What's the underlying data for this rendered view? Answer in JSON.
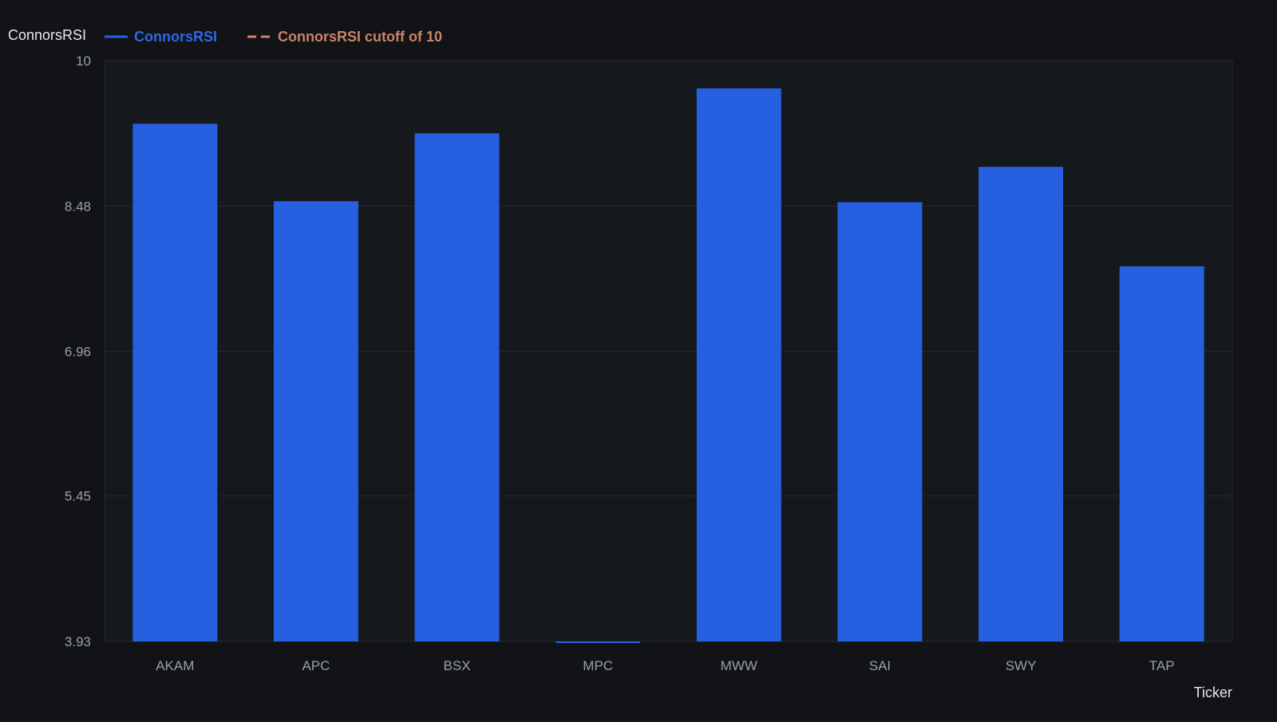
{
  "chart_data": {
    "type": "bar",
    "ylabel": "ConnorsRSI",
    "xlabel": "Ticker",
    "categories": [
      "AKAM",
      "APC",
      "BSX",
      "MPC",
      "MWW",
      "SAI",
      "SWY",
      "TAP"
    ],
    "series": [
      {
        "name": "ConnorsRSI",
        "color": "#2660e0",
        "values": [
          9.34,
          8.53,
          9.24,
          3.92,
          9.71,
          8.52,
          8.89,
          7.85
        ]
      }
    ],
    "reference_lines": [
      {
        "name": "ConnorsRSI cutoff of 10",
        "value": 10,
        "color": "#c98468",
        "style": "dashed"
      }
    ],
    "y_ticks": [
      "3.93",
      "5.45",
      "6.96",
      "8.48",
      "10"
    ],
    "ylim": [
      3.93,
      10
    ],
    "grid": true,
    "legend_position": "top-left"
  },
  "colors": {
    "background": "#111317",
    "plot_background": "#15181c",
    "grid": "#262a30",
    "axis_text": "#9aa0a8",
    "label_text": "#e6e8eb"
  }
}
